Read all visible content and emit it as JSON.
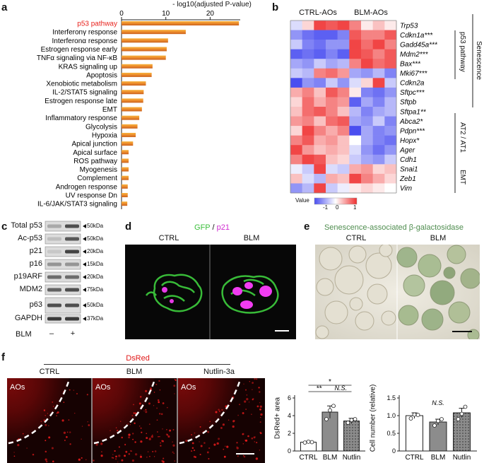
{
  "panels": {
    "a": {
      "label": "a",
      "axis_title": "- log10(adjusted P-value)",
      "ticks": [
        "0",
        "10",
        "20"
      ],
      "highlight_color": "#e8231e"
    },
    "b": {
      "label": "b",
      "group_labels": [
        "CTRL-AOs",
        "BLM-AOs"
      ],
      "genes": [
        "Trp53",
        "Cdkn1a***",
        "Gadd45a***",
        "Mdm2***",
        "Bax***",
        "Mki67***",
        "Cdkn2a",
        "Sftpc***",
        "Sftpb",
        "Sftpa1**",
        "Abca2*",
        "Pdpn***",
        "Hopx*",
        "Ager",
        "Cdh1",
        "Snai1",
        "Zeb1",
        "Vim"
      ],
      "bracket_labels": [
        "p53 pathway",
        "Senescence",
        "AT2 / AT1",
        "EMT"
      ],
      "legend_title": "Value",
      "legend_ticks": [
        "-1",
        "0",
        "1"
      ]
    },
    "c": {
      "label": "c",
      "rows": [
        {
          "name": "Total p53",
          "kda": "50kDa"
        },
        {
          "name": "Ac-p53",
          "kda": "50kDa"
        },
        {
          "name": "p21",
          "kda": "20kDa"
        },
        {
          "name": "p16",
          "kda": "15kDa"
        },
        {
          "name": "p19ARF",
          "kda": "20kDa"
        },
        {
          "name": "MDM2",
          "kda": "75kDa"
        },
        {
          "name": "p63",
          "kda": "50kDa"
        },
        {
          "name": "GAPDH",
          "kda": "37kDa"
        }
      ],
      "treatment_label": "BLM",
      "lane_signs": [
        "–",
        "+"
      ]
    },
    "d": {
      "label": "d",
      "title_gfp": "GFP",
      "title_sep": " / ",
      "title_p21": "p21",
      "conditions": [
        "CTRL",
        "BLM"
      ]
    },
    "e": {
      "label": "e",
      "title": "Senescence-associated β-galactosidase",
      "conditions": [
        "CTRL",
        "BLM"
      ]
    },
    "f": {
      "label": "f",
      "title": "DsRed",
      "conditions": [
        "CTRL",
        "BLM",
        "Nutlin-3a"
      ],
      "region_label": "AOs",
      "sig": {
        "s1": "*",
        "s2": "**",
        "s3": "N.S.",
        "s4": "N.S."
      }
    }
  },
  "chart_data": [
    {
      "type": "bar",
      "orientation": "horizontal",
      "title": "",
      "xlabel": "- log10(adjusted P-value)",
      "xlim": [
        0,
        27
      ],
      "categories": [
        "p53 pathway",
        "Interferonγ response",
        "Interferonα response",
        "Estrogen response early",
        "TNFα signaling via NF-κB",
        "KRAS signaling up",
        "Apoptosis",
        "Xenobiotic metabolism",
        "IL-2/STAT5 signaling",
        "Estrogen response late",
        "EMT",
        "Inflammatory response",
        "Glycolysis",
        "Hypoxia",
        "Apical junction",
        "Apical surface",
        "ROS pathway",
        "Myogenesis",
        "Complement",
        "Androgen response",
        "UV response Dn",
        "IL-6/JAK/STAT3 signaling"
      ],
      "values": [
        26.5,
        14.5,
        10.5,
        10.2,
        10.0,
        7.0,
        6.8,
        5.5,
        5.0,
        4.9,
        4.6,
        4.0,
        3.6,
        3.2,
        2.6,
        1.6,
        1.6,
        1.6,
        1.6,
        1.4,
        1.4,
        1.3
      ]
    },
    {
      "type": "bar",
      "title": "",
      "ylabel": "DsRed+ area",
      "ylim": [
        0,
        6
      ],
      "yticks": [
        "0",
        "2",
        "4",
        "6"
      ],
      "categories": [
        "CTRL",
        "BLM",
        "Nutlin"
      ],
      "values": [
        1.0,
        4.4,
        3.4
      ],
      "errors": [
        0.1,
        0.7,
        0.3
      ],
      "points": [
        [
          0.95,
          1.05,
          1.0
        ],
        [
          3.6,
          4.6,
          5.1
        ],
        [
          3.2,
          3.5,
          3.6
        ]
      ]
    },
    {
      "type": "bar",
      "title": "",
      "ylabel": "Cell number (relative)",
      "ylim": [
        0,
        1.5
      ],
      "yticks": [
        "0",
        "0.5",
        "1.0",
        "1.5"
      ],
      "categories": [
        "CTRL",
        "BLM",
        "Nutlin"
      ],
      "values": [
        1.0,
        0.82,
        1.08
      ],
      "errors": [
        0.08,
        0.08,
        0.13
      ],
      "points": [
        [
          0.92,
          1.03,
          1.02
        ],
        [
          0.72,
          0.85,
          0.9
        ],
        [
          0.9,
          1.05,
          1.25
        ]
      ]
    }
  ]
}
